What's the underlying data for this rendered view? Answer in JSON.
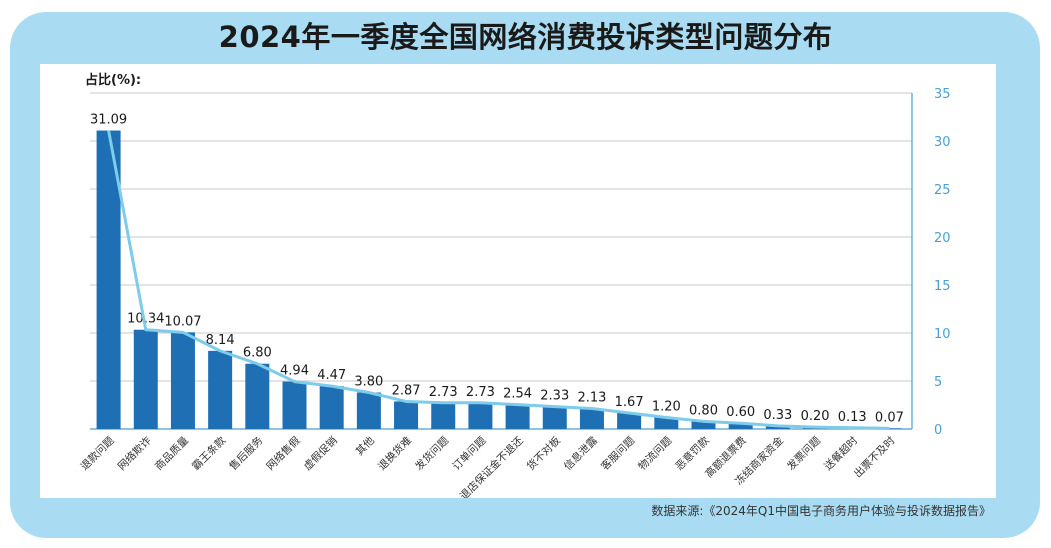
{
  "title": "2024年一季度全国网络消费投诉类型问题分布",
  "source": "数据来源:《2024年Q1中国电子商务用户体验与投诉数据报告》",
  "colors": {
    "frame": "#a9dcf2",
    "bar": "#1f6fb5",
    "line": "#7ecbea",
    "axis": "#4a9fd0",
    "grid": "#c8c8c8"
  },
  "chart_data": {
    "type": "bar",
    "ylabel": "占比(%):",
    "ylim": [
      0,
      35
    ],
    "yticks": [
      0,
      5,
      10,
      15,
      20,
      25,
      30,
      35
    ],
    "grid": true,
    "categories": [
      "退款问题",
      "网络欺诈",
      "商品质量",
      "霸王条款",
      "售后服务",
      "网络售假",
      "虚假促销",
      "其他",
      "退换货难",
      "发货问题",
      "订单问题",
      "退店保证金不退还",
      "货不对板",
      "信息泄露",
      "客服问题",
      "物流问题",
      "恶意罚款",
      "高额退票费",
      "冻结商家资金",
      "发票问题",
      "送餐超时",
      "出票不及时"
    ],
    "values": [
      31.09,
      10.34,
      10.07,
      8.14,
      6.8,
      4.94,
      4.47,
      3.8,
      2.87,
      2.73,
      2.73,
      2.54,
      2.33,
      2.13,
      1.67,
      1.2,
      0.8,
      0.6,
      0.33,
      0.2,
      0.13,
      0.07
    ],
    "labels": [
      "31.09",
      "10.34",
      "10.07",
      "8.14",
      "6.80",
      "4.94",
      "4.47",
      "3.80",
      "2.87",
      "2.73",
      "2.73",
      "2.54",
      "2.33",
      "2.13",
      "1.67",
      "1.20",
      "0.80",
      "0.60",
      "0.33",
      "0.20",
      "0.13",
      "0.07"
    ]
  }
}
